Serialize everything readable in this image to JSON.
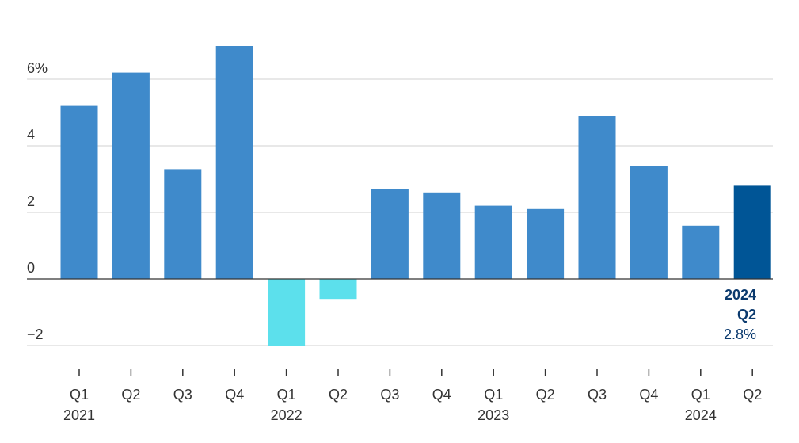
{
  "chart_data": {
    "type": "bar",
    "categories": [
      "Q1",
      "Q2",
      "Q3",
      "Q4",
      "Q1",
      "Q2",
      "Q3",
      "Q4",
      "Q1",
      "Q2",
      "Q3",
      "Q4",
      "Q1",
      "Q2"
    ],
    "years": [
      {
        "label": "2021",
        "start": 0
      },
      {
        "label": "2022",
        "start": 4
      },
      {
        "label": "2023",
        "start": 8
      },
      {
        "label": "2024",
        "start": 12
      }
    ],
    "values": [
      5.2,
      6.2,
      3.3,
      7.0,
      -2.0,
      -0.6,
      2.7,
      2.6,
      2.2,
      2.1,
      4.9,
      3.4,
      1.6,
      2.8
    ],
    "ylim": [
      -2,
      7
    ],
    "y_ticks": [
      {
        "value": 6,
        "label": "6%"
      },
      {
        "value": 4,
        "label": "4"
      },
      {
        "value": 2,
        "label": "2"
      },
      {
        "value": 0,
        "label": "0"
      },
      {
        "value": -2,
        "label": "−2"
      }
    ],
    "grid": true,
    "colors": {
      "positive": "#3f8acb",
      "negative": "#5ce0ec",
      "highlight": "#005596",
      "grid": "#d0d0d0",
      "axis": "#333333"
    },
    "highlight_index": 13,
    "annotation": {
      "year": "2024",
      "quarter": "Q2",
      "value": "2.8%"
    }
  }
}
